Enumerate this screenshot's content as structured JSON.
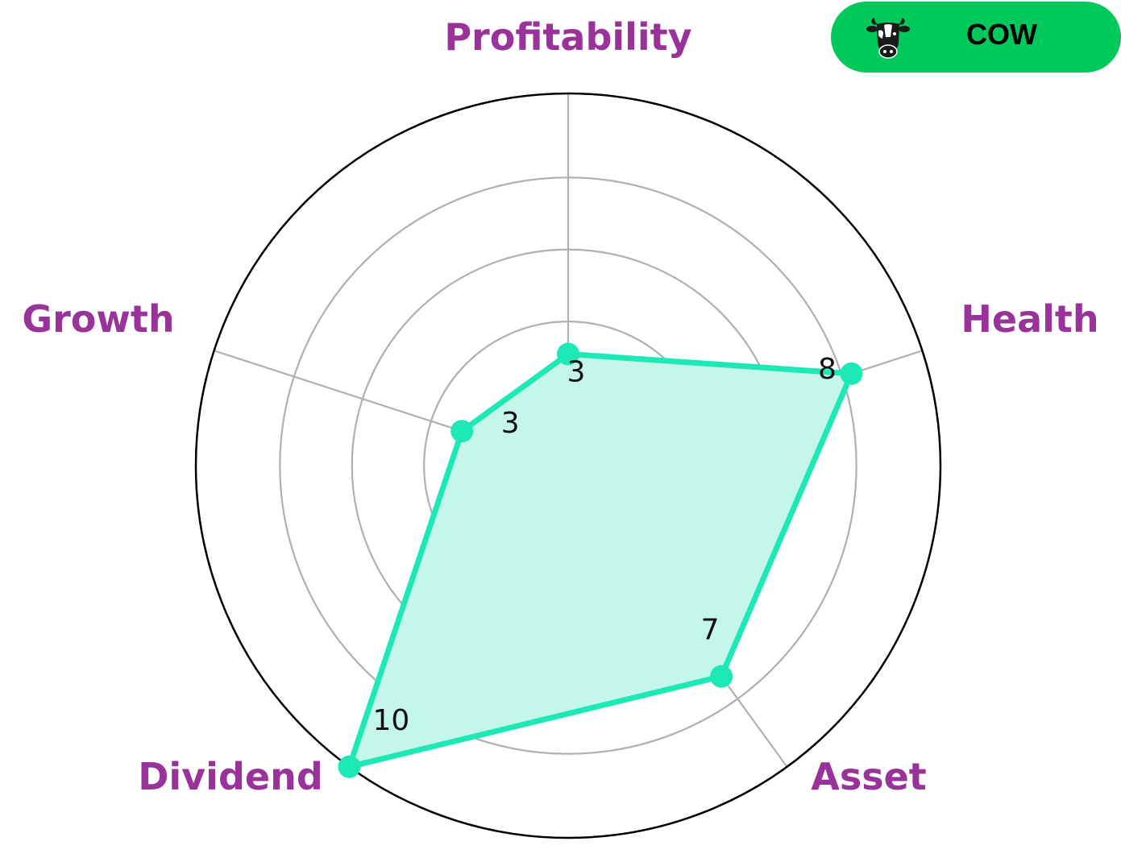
{
  "badge": {
    "ticker": "COW",
    "icon": "cow-icon",
    "background_color": "#00C85A"
  },
  "chart_data": {
    "type": "radar",
    "categories": [
      "Profitability",
      "Health",
      "Asset",
      "Dividend",
      "Growth"
    ],
    "values": [
      3,
      8,
      7,
      10,
      3
    ],
    "value_labels": [
      "3",
      "8",
      "7",
      "10",
      "3"
    ],
    "rlim": [
      0,
      10
    ],
    "grid": true,
    "colors": {
      "series": "#1DE9B6",
      "fill": "#C5F6EA",
      "axis_label": "#993399",
      "grid": "#B0B0B0",
      "outer_ring": "#000000"
    }
  }
}
